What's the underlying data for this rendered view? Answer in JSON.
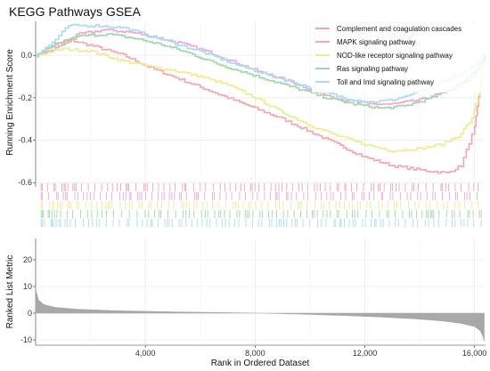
{
  "chart_data": {
    "type": "line",
    "title": "KEGG Pathways GSEA",
    "xlabel": "Rank in Ordered Dataset",
    "xticks": [
      "4,000",
      "8,000",
      "12,000",
      "16,000"
    ],
    "xlim": [
      0,
      16400
    ],
    "es_panel": {
      "ylabel": "Running Enrichment Score",
      "yticks": [
        "0.0",
        "-0.2",
        "-0.4",
        "-0.6"
      ],
      "ylim": [
        -0.62,
        0.16
      ],
      "series": [
        {
          "name": "Complement and coagulation cascades",
          "color": "#f4a6ad",
          "points": [
            [
              0,
              0
            ],
            [
              500,
              0.02
            ],
            [
              1300,
              0.07
            ],
            [
              2200,
              0.04
            ],
            [
              3200,
              0.0
            ],
            [
              4200,
              -0.06
            ],
            [
              5000,
              -0.1
            ],
            [
              6000,
              -0.15
            ],
            [
              7000,
              -0.2
            ],
            [
              8000,
              -0.25
            ],
            [
              9000,
              -0.3
            ],
            [
              10000,
              -0.36
            ],
            [
              11000,
              -0.42
            ],
            [
              12000,
              -0.48
            ],
            [
              13000,
              -0.52
            ],
            [
              14000,
              -0.54
            ],
            [
              15000,
              -0.555
            ],
            [
              15500,
              -0.52
            ],
            [
              16000,
              -0.34
            ],
            [
              16200,
              -0.15
            ],
            [
              16350,
              0
            ]
          ]
        },
        {
          "name": "MAPK signaling pathway",
          "color": "#f2a4d8",
          "points": [
            [
              0,
              0
            ],
            [
              700,
              0.05
            ],
            [
              1600,
              0.1
            ],
            [
              2500,
              0.12
            ],
            [
              3400,
              0.11
            ],
            [
              4200,
              0.09
            ],
            [
              5200,
              0.06
            ],
            [
              6200,
              0.02
            ],
            [
              7200,
              -0.03
            ],
            [
              8200,
              -0.08
            ],
            [
              9200,
              -0.12
            ],
            [
              10200,
              -0.17
            ],
            [
              11200,
              -0.21
            ],
            [
              12200,
              -0.23
            ],
            [
              13000,
              -0.23
            ],
            [
              14000,
              -0.21
            ],
            [
              15000,
              -0.17
            ],
            [
              15800,
              -0.12
            ],
            [
              16200,
              -0.05
            ],
            [
              16350,
              0
            ]
          ]
        },
        {
          "name": "NOD-like receptor signaling pathway",
          "color": "#ecec94",
          "points": [
            [
              0,
              0
            ],
            [
              1000,
              0.03
            ],
            [
              2000,
              0.02
            ],
            [
              3000,
              -0.02
            ],
            [
              4000,
              -0.05
            ],
            [
              5000,
              -0.07
            ],
            [
              6000,
              -0.1
            ],
            [
              7000,
              -0.14
            ],
            [
              8000,
              -0.2
            ],
            [
              9000,
              -0.27
            ],
            [
              10000,
              -0.33
            ],
            [
              11000,
              -0.38
            ],
            [
              12000,
              -0.42
            ],
            [
              13000,
              -0.45
            ],
            [
              14000,
              -0.44
            ],
            [
              14800,
              -0.42
            ],
            [
              15400,
              -0.38
            ],
            [
              15900,
              -0.3
            ],
            [
              16200,
              -0.15
            ],
            [
              16350,
              0
            ]
          ]
        },
        {
          "name": "Ras signaling pathway",
          "color": "#9ed8a6",
          "points": [
            [
              0,
              0
            ],
            [
              700,
              0.05
            ],
            [
              1600,
              0.09
            ],
            [
              2600,
              0.1
            ],
            [
              3600,
              0.08
            ],
            [
              4600,
              0.05
            ],
            [
              5600,
              0.01
            ],
            [
              6600,
              -0.04
            ],
            [
              7600,
              -0.08
            ],
            [
              8600,
              -0.12
            ],
            [
              9600,
              -0.16
            ],
            [
              10600,
              -0.2
            ],
            [
              11600,
              -0.23
            ],
            [
              12600,
              -0.25
            ],
            [
              13400,
              -0.24
            ],
            [
              14200,
              -0.21
            ],
            [
              15000,
              -0.17
            ],
            [
              15800,
              -0.1
            ],
            [
              16200,
              -0.04
            ],
            [
              16350,
              0
            ]
          ]
        },
        {
          "name": "Toll and Imd signaling pathway",
          "color": "#a8dcf0",
          "points": [
            [
              0,
              0
            ],
            [
              600,
              0.06
            ],
            [
              1200,
              0.14
            ],
            [
              2200,
              0.14
            ],
            [
              3200,
              0.13
            ],
            [
              4200,
              0.09
            ],
            [
              5200,
              0.05
            ],
            [
              6200,
              0.01
            ],
            [
              7200,
              -0.04
            ],
            [
              8200,
              -0.08
            ],
            [
              9200,
              -0.12
            ],
            [
              10200,
              -0.16
            ],
            [
              11200,
              -0.2
            ],
            [
              12200,
              -0.22
            ],
            [
              13000,
              -0.21
            ],
            [
              13800,
              -0.18
            ],
            [
              14600,
              -0.14
            ],
            [
              15400,
              -0.09
            ],
            [
              16000,
              -0.05
            ],
            [
              16350,
              0
            ]
          ]
        }
      ],
      "legend_position": "top-right"
    },
    "metric_panel": {
      "ylabel": "Ranked List Metric",
      "yticks": [
        "20",
        "10",
        "0",
        "-10"
      ],
      "ylim": [
        -12,
        28
      ],
      "curve": {
        "color": "#a8a8a8",
        "points": [
          [
            0,
            9
          ],
          [
            100,
            5
          ],
          [
            300,
            3.2
          ],
          [
            700,
            2.2
          ],
          [
            1500,
            1.5
          ],
          [
            3000,
            0.9
          ],
          [
            5000,
            0.5
          ],
          [
            7000,
            0.2
          ],
          [
            8200,
            0
          ],
          [
            9500,
            -0.3
          ],
          [
            11000,
            -0.8
          ],
          [
            12500,
            -1.4
          ],
          [
            13800,
            -2.1
          ],
          [
            14800,
            -2.9
          ],
          [
            15500,
            -3.8
          ],
          [
            16000,
            -5
          ],
          [
            16200,
            -6.5
          ],
          [
            16300,
            -8.5
          ],
          [
            16350,
            -10.5
          ]
        ]
      }
    }
  }
}
